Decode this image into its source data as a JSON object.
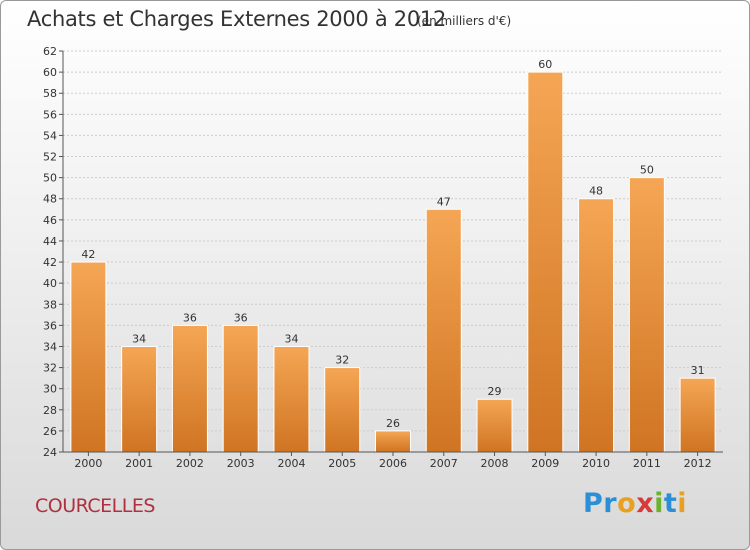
{
  "header": {
    "title": "Achats et Charges Externes 2000 à 2012",
    "subtitle": "(en milliers d'€)"
  },
  "location": "COURCELLES",
  "logo": {
    "text": "Proxiti",
    "letters": [
      {
        "char": "P",
        "color": "#2a8fd6"
      },
      {
        "char": "r",
        "color": "#2a8fd6"
      },
      {
        "char": "o",
        "color": "#e8a020"
      },
      {
        "char": "x",
        "color": "#d83a3a"
      },
      {
        "char": "i",
        "color": "#6ab42c"
      },
      {
        "char": "t",
        "color": "#2a8fd6"
      },
      {
        "char": "i",
        "color": "#e8a020"
      }
    ]
  },
  "colors": {
    "bar_top": "#f5a654",
    "bar_bottom": "#cf7422",
    "axis": "#555555",
    "grid": "#cccccc"
  },
  "chart_data": {
    "type": "bar",
    "title": "Achats et Charges Externes 2000 à 2012",
    "subtitle": "(en milliers d'€)",
    "categories": [
      "2000",
      "2001",
      "2002",
      "2003",
      "2004",
      "2005",
      "2006",
      "2007",
      "2008",
      "2009",
      "2010",
      "2011",
      "2012"
    ],
    "values": [
      42,
      34,
      36,
      36,
      34,
      32,
      26,
      47,
      29,
      60,
      48,
      50,
      31
    ],
    "data_labels": [
      "42",
      "34",
      "36",
      "36",
      "34",
      "32",
      "26",
      "47",
      "29",
      "60",
      "48",
      "50",
      "31"
    ],
    "ylim": [
      24,
      62
    ],
    "yticks": [
      24,
      26,
      28,
      30,
      32,
      34,
      36,
      38,
      40,
      42,
      44,
      46,
      48,
      50,
      52,
      54,
      56,
      58,
      60,
      62
    ],
    "grid": true,
    "xlabel": "",
    "ylabel": ""
  }
}
